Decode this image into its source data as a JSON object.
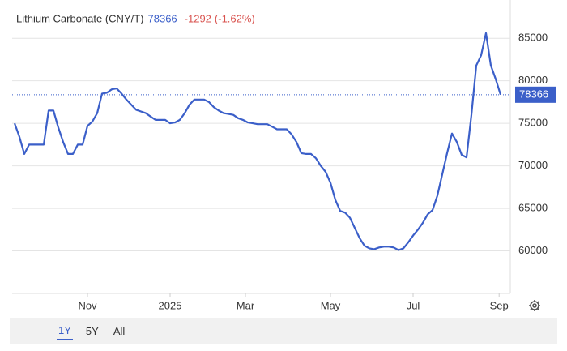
{
  "chart_data": {
    "type": "line",
    "title": "Lithium Carbonate (CNY/T)",
    "last_value": 78366,
    "change": -1292,
    "change_pct": {
      "value": -1.62,
      "label": "(-1.62%)"
    },
    "color": "#3b5fc9",
    "values": [
      75000,
      73400,
      71400,
      72500,
      72500,
      72500,
      72500,
      76500,
      76500,
      74500,
      72800,
      71400,
      71400,
      72500,
      72500,
      74700,
      75200,
      76200,
      78500,
      78600,
      79000,
      79100,
      78500,
      77800,
      77200,
      76600,
      76400,
      76200,
      75800,
      75400,
      75400,
      75400,
      75000,
      75100,
      75400,
      76200,
      77200,
      77800,
      77800,
      77800,
      77500,
      76900,
      76500,
      76200,
      76100,
      76000,
      75600,
      75400,
      75100,
      75000,
      74900,
      74900,
      74900,
      74600,
      74300,
      74300,
      74300,
      73700,
      72800,
      71500,
      71400,
      71400,
      70900,
      70000,
      69300,
      68000,
      66000,
      64700,
      64500,
      63900,
      62700,
      61500,
      60600,
      60300,
      60200,
      60400,
      60500,
      60500,
      60400,
      60100,
      60300,
      61000,
      61800,
      62500,
      63300,
      64300,
      64800,
      66500,
      69000,
      71500,
      73800,
      72800,
      71300,
      71000,
      76000,
      81800,
      83000,
      85600,
      81800,
      80200,
      78366
    ],
    "xlim": [
      0,
      100
    ],
    "xticks": [
      {
        "value": 15,
        "label": "Nov"
      },
      {
        "value": 32,
        "label": "2025"
      },
      {
        "value": 47.5,
        "label": "Mar"
      },
      {
        "value": 65,
        "label": "May"
      },
      {
        "value": 82,
        "label": "Jul"
      },
      {
        "value": 99.7,
        "label": "Sep"
      }
    ],
    "ylim": [
      55000,
      89500
    ],
    "yticks": [
      60000,
      65000,
      70000,
      75000,
      80000,
      85000
    ],
    "grid": true
  },
  "range_buttons": [
    "1Y",
    "5Y",
    "All"
  ]
}
